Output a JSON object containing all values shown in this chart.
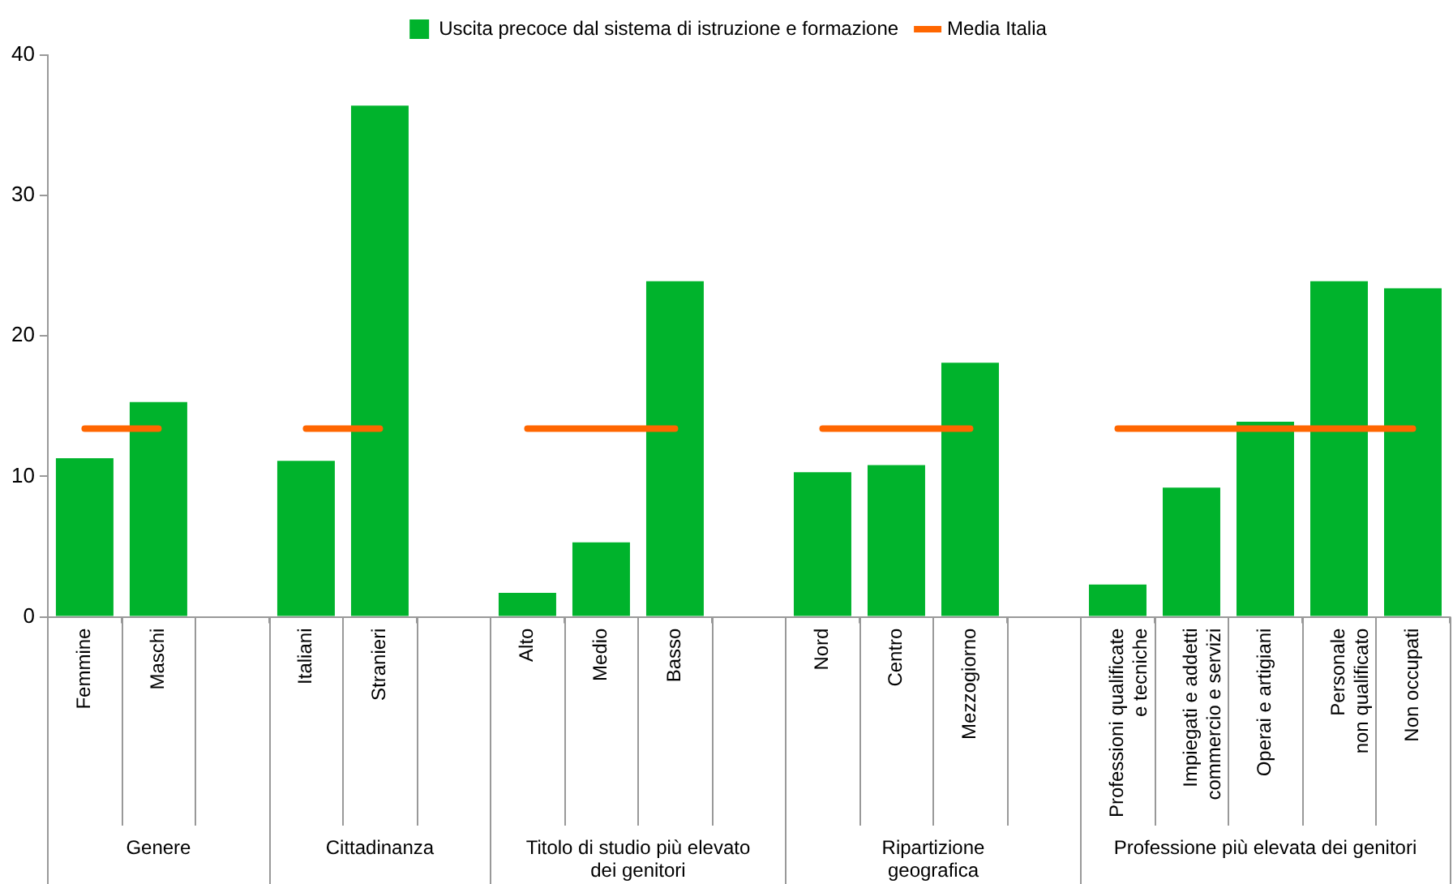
{
  "chart_data": {
    "type": "bar",
    "categories": [
      "Femmine",
      "Maschi",
      null,
      "Italiani",
      "Stranieri",
      null,
      "Alto",
      "Medio",
      "Basso",
      null,
      "Nord",
      "Centro",
      "Mezzogiorno",
      null,
      "Professioni qualificate\ne tecniche",
      "Impiegati e addetti\ncommercio e servizi",
      "Operai e artigiani",
      "Personale\nnon qualificato",
      "Non occupati"
    ],
    "series": [
      {
        "name": "Uscita precoce dal sistema di istruzione e formazione",
        "color": "#00b32c",
        "values": [
          11.3,
          15.3,
          null,
          11.1,
          36.4,
          null,
          1.7,
          5.3,
          23.9,
          null,
          10.3,
          10.8,
          18.1,
          null,
          2.3,
          9.2,
          13.9,
          23.9,
          23.4
        ]
      },
      {
        "name": "Media Italia",
        "type": "line",
        "color": "#ff6600",
        "values": [
          13.4,
          13.4,
          null,
          13.4,
          13.4,
          null,
          13.4,
          13.4,
          13.4,
          null,
          13.4,
          13.4,
          13.4,
          null,
          13.4,
          13.4,
          13.4,
          13.4,
          13.4
        ]
      }
    ],
    "annotations": [
      "Genere",
      "Cittadinanza",
      "Titolo di studio più elevato\ndei genitori",
      "Ripartizione\ngeografica",
      "Professione più elevata dei genitori"
    ],
    "ylim": [
      0,
      40
    ],
    "yticks": [
      0,
      10,
      20,
      30,
      40
    ],
    "legend": "top",
    "marker": "none"
  }
}
